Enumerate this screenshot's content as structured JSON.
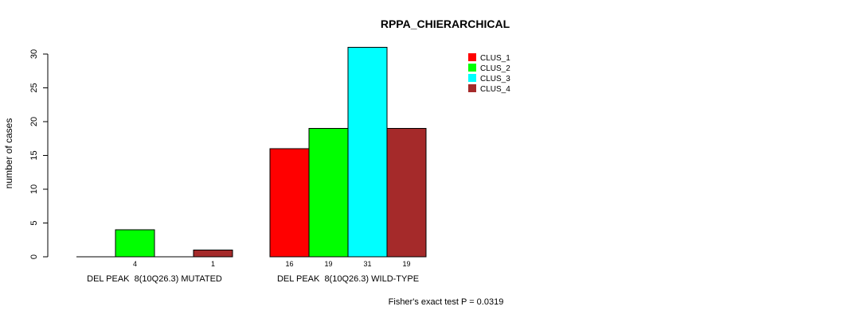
{
  "chart_data": {
    "type": "bar",
    "title": "RPPA_CHIERARCHICAL",
    "ylabel": "number of cases",
    "xlabel": "",
    "ylim": [
      0,
      31
    ],
    "yticks": [
      0,
      5,
      10,
      15,
      20,
      25,
      30
    ],
    "categories": [
      "DEL PEAK  8(10Q26.3) MUTATED",
      "DEL PEAK  8(10Q26.3) WILD-TYPE"
    ],
    "series": [
      {
        "name": "CLUS_1",
        "color": "#ff0000",
        "values": [
          0,
          16
        ]
      },
      {
        "name": "CLUS_2",
        "color": "#00ff00",
        "values": [
          4,
          19
        ]
      },
      {
        "name": "CLUS_3",
        "color": "#00ffff",
        "values": [
          0,
          31
        ]
      },
      {
        "name": "CLUS_4",
        "color": "#a52a2a",
        "values": [
          1,
          19
        ]
      }
    ],
    "count_labels": [
      [
        "",
        "4",
        "",
        "1"
      ],
      [
        "16",
        "19",
        "31",
        "19"
      ]
    ],
    "legend_position": "top-right",
    "footnote": "Fisher's exact test P = 0.0319"
  }
}
